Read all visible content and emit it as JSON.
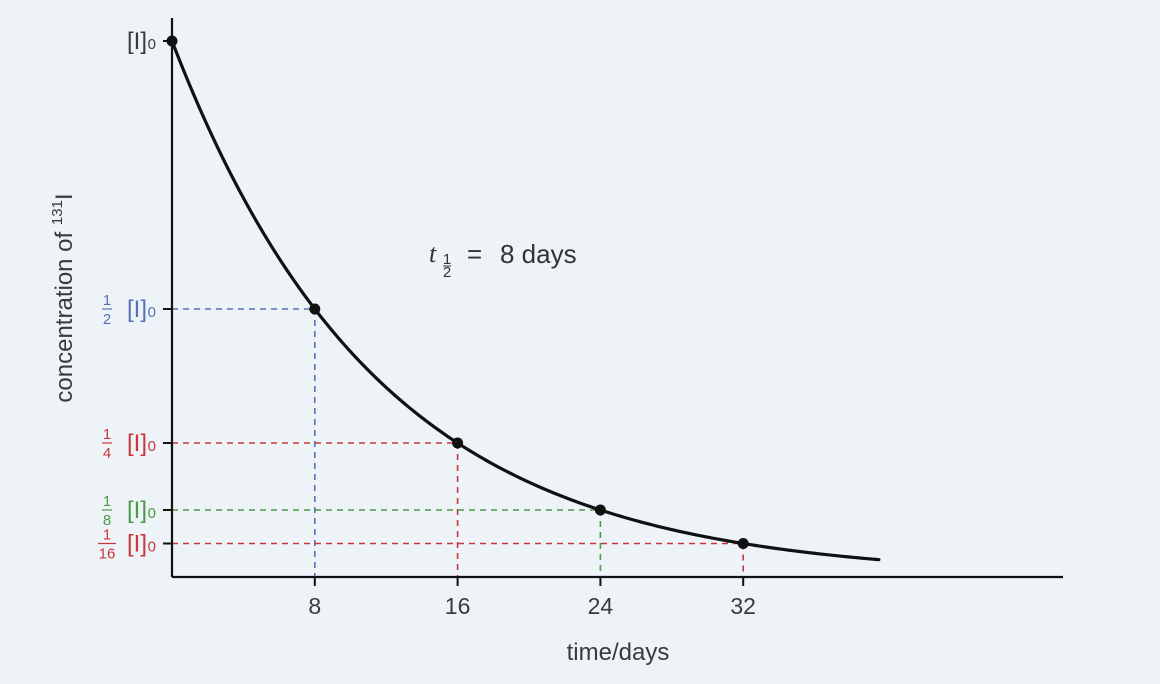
{
  "chart_data": {
    "type": "line",
    "xlabel": "time/days",
    "ylabel_prefix": "concentration of ",
    "ylabel_sup": "131",
    "ylabel_suffix": "I",
    "xlim": [
      0,
      40
    ],
    "ylim": [
      0,
      1.07
    ],
    "x_ticks": [
      {
        "value": 8,
        "label": "8"
      },
      {
        "value": 16,
        "label": "16"
      },
      {
        "value": 24,
        "label": "24"
      },
      {
        "value": 32,
        "label": "32"
      }
    ],
    "y_ticks": [
      {
        "value": 1,
        "num": "",
        "den": "",
        "bracket": "[I]",
        "sub": "0",
        "color": "#3a3a3a"
      },
      {
        "value": 0.5,
        "num": "1",
        "den": "2",
        "bracket": "[I]",
        "sub": "0",
        "color": "#5572b8"
      },
      {
        "value": 0.25,
        "num": "1",
        "den": "4",
        "bracket": "[I]",
        "sub": "0",
        "color": "#c8373c"
      },
      {
        "value": 0.125,
        "num": "1",
        "den": "8",
        "bracket": "[I]",
        "sub": "0",
        "color": "#4a9a48"
      },
      {
        "value": 0.0625,
        "num": "1",
        "den": "16",
        "bracket": "[I]",
        "sub": "0",
        "color": "#c8373c"
      }
    ],
    "half_life_days": 8,
    "curve_x_range": [
      0,
      39.6
    ],
    "points": [
      {
        "x": 0,
        "y": 1
      },
      {
        "x": 8,
        "y": 0.5
      },
      {
        "x": 16,
        "y": 0.25
      },
      {
        "x": 24,
        "y": 0.125
      },
      {
        "x": 32,
        "y": 0.0625
      }
    ],
    "guides": [
      {
        "x": 8,
        "y": 0.5,
        "color": "#5572b8"
      },
      {
        "x": 16,
        "y": 0.25,
        "color": "#c8373c"
      },
      {
        "x": 24,
        "y": 0.125,
        "color": "#4a9a48"
      },
      {
        "x": 32,
        "y": 0.0625,
        "color": "#c8373c"
      }
    ],
    "annotation": {
      "var": "t",
      "sub_num": "1",
      "sub_den": "2",
      "eq": "=",
      "value": "8 days"
    },
    "colors": {
      "curve": "#111111",
      "axis": "#111111",
      "text": "#3a3a3a",
      "background": "#eef3f7"
    }
  }
}
